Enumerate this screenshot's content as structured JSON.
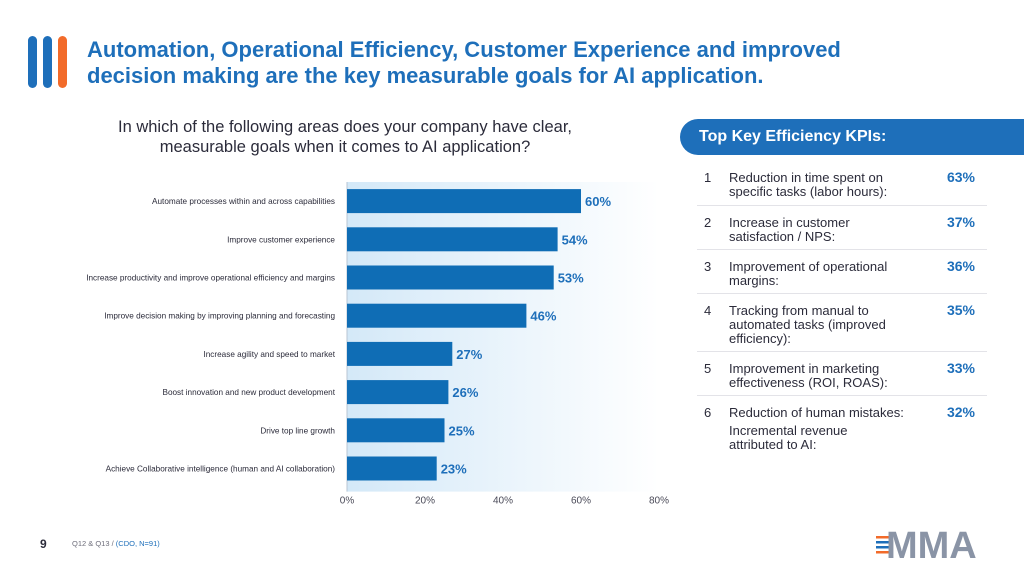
{
  "headline": {
    "line1": "Automation, Operational Efficiency, Customer Experience and improved",
    "line2": "decision making are the key measurable goals for AI application."
  },
  "question": {
    "line1": "In which of the following areas does your company have clear,",
    "line2": "measurable goals when it comes to AI application?"
  },
  "chart_data": {
    "type": "bar",
    "orientation": "horizontal",
    "title": "In which of the following areas does your company have clear, measurable goals when it comes to AI application?",
    "categories": [
      "Automate processes within and across capabilities",
      "Improve customer experience",
      "Increase productivity and improve operational efficiency and margins",
      "Improve decision making by improving planning and forecasting",
      "Increase agility and speed to market",
      "Boost innovation and new product development",
      "Drive top line growth",
      "Achieve Collaborative intelligence (human and AI collaboration)"
    ],
    "values": [
      60,
      54,
      53,
      46,
      27,
      26,
      25,
      23
    ],
    "value_labels": [
      "60%",
      "54%",
      "53%",
      "46%",
      "27%",
      "26%",
      "25%",
      "23%"
    ],
    "xlim": [
      0,
      80
    ],
    "xticks": [
      0,
      20,
      40,
      60,
      80
    ],
    "xtick_labels": [
      "0%",
      "20%",
      "40%",
      "60%",
      "80%"
    ],
    "xlabel": "",
    "ylabel": "",
    "bar_color": "#0f6db5",
    "label_color": "#1e6fba"
  },
  "kpi": {
    "title": "Top Key Efficiency KPIs:",
    "items": [
      {
        "num": "1",
        "lines": [
          "Reduction in time spent on",
          "specific tasks (labor hours):"
        ],
        "pct": "63%"
      },
      {
        "num": "2",
        "lines": [
          "Increase in customer",
          "satisfaction / NPS:"
        ],
        "pct": "37%"
      },
      {
        "num": "3",
        "lines": [
          "Improvement of operational",
          "margins:"
        ],
        "pct": "36%"
      },
      {
        "num": "4",
        "lines": [
          "Tracking from manual to",
          "automated tasks (improved",
          "efficiency):"
        ],
        "pct": "35%"
      },
      {
        "num": "5",
        "lines": [
          "Improvement in marketing",
          "effectiveness (ROI, ROAS):"
        ],
        "pct": "33%"
      },
      {
        "num": "6",
        "lines": [
          "Reduction of human mistakes:"
        ],
        "pct": "32%"
      }
    ],
    "extra_lines": [
      "Incremental revenue",
      "attributed to AI:"
    ]
  },
  "footer": {
    "page_number": "9",
    "source_prefix": "Q12 & Q13 / ",
    "source_highlight": "(CDO, N=91)"
  },
  "logo": {
    "text": "MMA"
  },
  "colors": {
    "brand_blue": "#1e6fba",
    "accent_orange": "#f26b2a",
    "bar_blue": "#0f6db5"
  }
}
